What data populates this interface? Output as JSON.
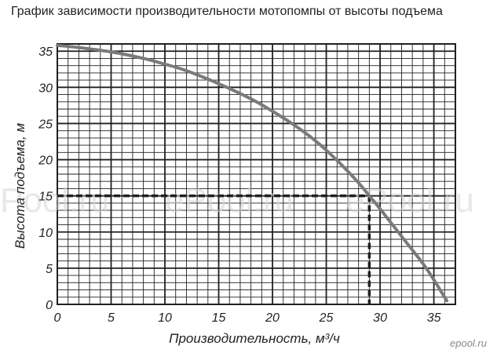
{
  "chart_data": {
    "type": "line",
    "title": "График зависимости производительности мотопомпы от высоты подъема",
    "xlabel": "Производительность, м³/ч",
    "ylabel": "Высота подъема, м",
    "xlim": [
      0,
      37
    ],
    "ylim": [
      0,
      36
    ],
    "x_ticks": [
      0,
      5,
      10,
      15,
      20,
      25,
      30,
      35
    ],
    "y_ticks": [
      0,
      5,
      10,
      15,
      20,
      25,
      30,
      35
    ],
    "grid": true,
    "minor_grid_step": 1,
    "series": [
      {
        "color": "#7a7a7a",
        "x": [
          0,
          2,
          5,
          8,
          10,
          12,
          15,
          18,
          20,
          22,
          24,
          26,
          28,
          29,
          30,
          32,
          34,
          35,
          36.2
        ],
        "y": [
          35.8,
          35.5,
          34.9,
          34.0,
          33.2,
          32.3,
          30.5,
          28.4,
          26.7,
          24.8,
          22.6,
          19.9,
          16.8,
          15.0,
          13.2,
          9.4,
          5.6,
          3.4,
          0.5
        ]
      }
    ],
    "annotations": [
      {
        "type": "dashed-guide",
        "x": 29,
        "y": 15,
        "color": "#231f20"
      }
    ]
  },
  "watermarks": [
    "Pool.ru",
    "ePool.ru",
    "ePool.ru"
  ],
  "corner_watermark": "epool.ru"
}
